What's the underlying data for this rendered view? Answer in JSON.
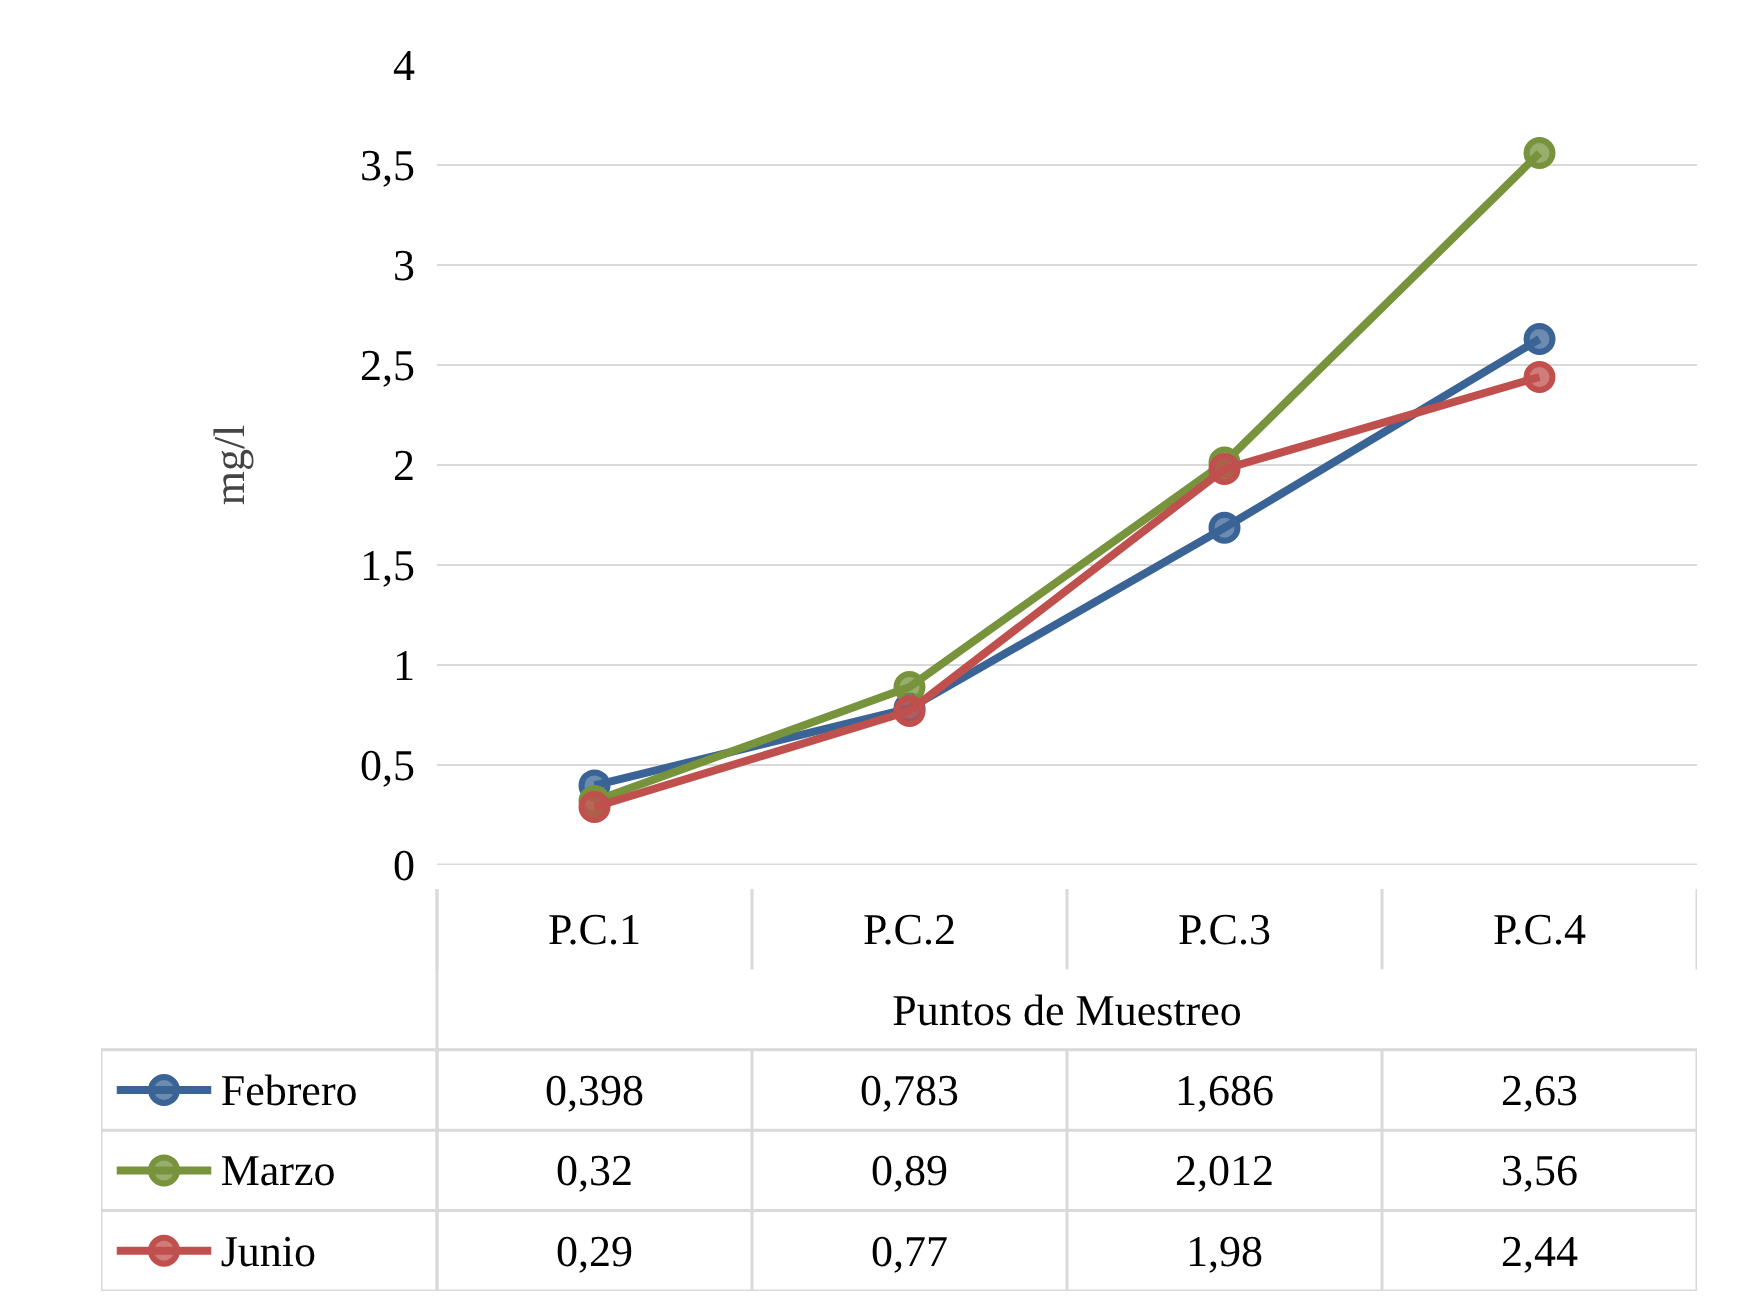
{
  "chart_data": {
    "type": "line",
    "xlabel": "Puntos de Muestreo",
    "ylabel": "mg/l",
    "categories": [
      "P.C.1",
      "P.C.2",
      "P.C.3",
      "P.C.4"
    ],
    "series": [
      {
        "name": "Febrero",
        "color": "#3b6496",
        "values": [
          0.398,
          0.783,
          1.686,
          2.63
        ],
        "value_labels": [
          "0,398",
          "0,783",
          "1,686",
          "2,63"
        ]
      },
      {
        "name": "Marzo",
        "color": "#77933c",
        "values": [
          0.32,
          0.89,
          2.012,
          3.56
        ],
        "value_labels": [
          "0,32",
          "0,89",
          "2,012",
          "3,56"
        ]
      },
      {
        "name": "Junio",
        "color": "#c0504d",
        "values": [
          0.29,
          0.77,
          1.98,
          2.44
        ],
        "value_labels": [
          "0,29",
          "0,77",
          "1,98",
          "2,44"
        ]
      }
    ],
    "ylim": [
      0,
      4
    ],
    "yticks": [
      0,
      {
        "value": 0.5,
        "label": "0,5"
      },
      1,
      {
        "value": 1.5,
        "label": "1,5"
      },
      2,
      {
        "value": 2.5,
        "label": "2,5"
      },
      3,
      {
        "value": 3.5,
        "label": "3,5"
      },
      4
    ],
    "grid": "y",
    "legend": "bottom",
    "marker": "circle",
    "line_style": "solid"
  }
}
